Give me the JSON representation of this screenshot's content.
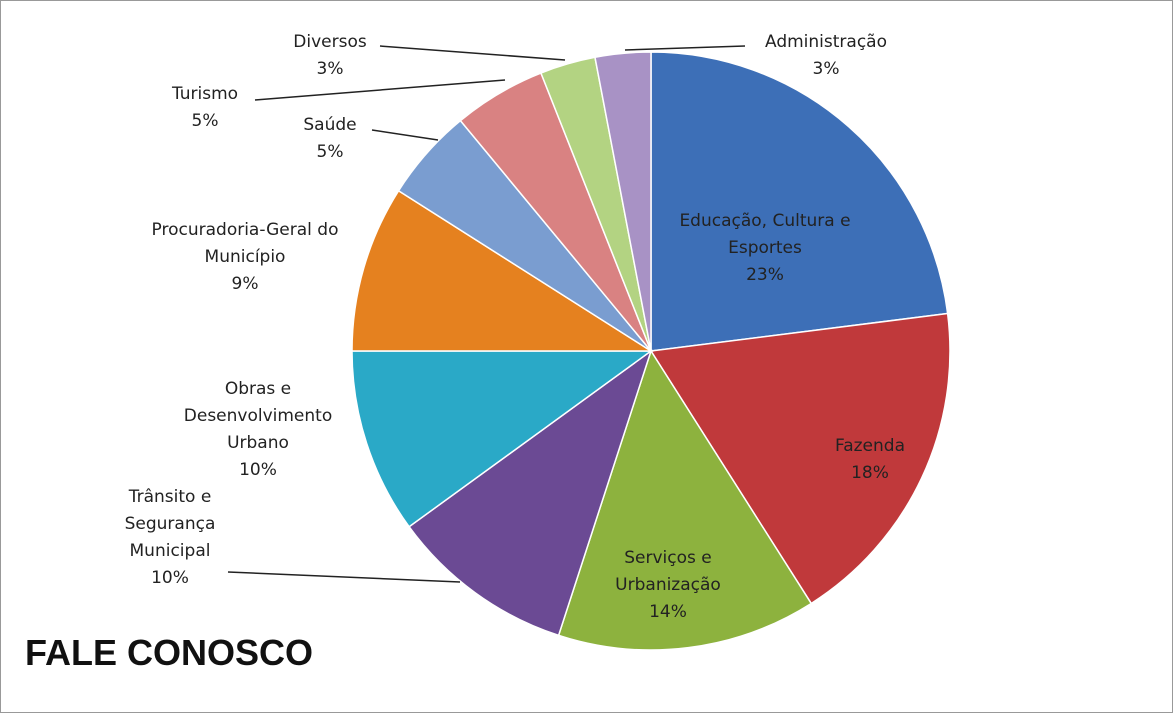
{
  "chart_data": {
    "type": "pie",
    "title": "FALE CONOSCO",
    "categories": [
      "Educação, Cultura e Esportes",
      "Fazenda",
      "Serviços e Urbanização",
      "Trânsito e Segurança Municipal",
      "Obras e Desenvolvimento Urbano",
      "Procuradoria-Geral do Município",
      "Saúde",
      "Turismo",
      "Diversos",
      "Administração"
    ],
    "values": [
      23,
      18,
      14,
      10,
      10,
      9,
      5,
      5,
      3,
      3
    ],
    "value_labels": [
      "23%",
      "18%",
      "14%",
      "10%",
      "10%",
      "9%",
      "5%",
      "5%",
      "3%",
      "3%"
    ],
    "colors": [
      "#3d6fb7",
      "#c0393b",
      "#8db23e",
      "#6b4a94",
      "#2aa9c7",
      "#e5811f",
      "#7a9dd0",
      "#d98282",
      "#b3d382",
      "#a892c5"
    ]
  }
}
